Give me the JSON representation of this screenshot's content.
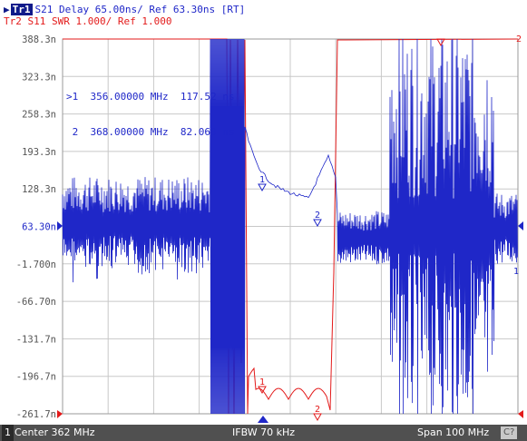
{
  "trace1": {
    "badge": "Tr1",
    "text": "S21 Delay 65.00ns/ Ref 63.30ns [RT]"
  },
  "trace2": {
    "badge": "Tr2",
    "text": "S11 SWR 1.000/ Ref 1.000"
  },
  "y_axis_labels": [
    "388.3n",
    "323.3n",
    "258.3n",
    "193.3n",
    "128.3n",
    "63.30n",
    "-1.700n",
    "-66.70n",
    "-131.7n",
    "-196.7n",
    "-261.7n"
  ],
  "ref_label_index": 5,
  "marker_table": [
    {
      "prefix": ">1",
      "freq": "356.00000 MHz",
      "value": "117.52 ns"
    },
    {
      "prefix": " 2",
      "freq": "368.00000 MHz",
      "value": "82.060 ns"
    }
  ],
  "status": {
    "channel": "1",
    "center": "Center 362 MHz",
    "ifbw": "IFBW 70 kHz",
    "span": "Span 100 MHz",
    "cal": "C?"
  },
  "right_markers": {
    "tr2": "2",
    "tr1": "1"
  },
  "colors": {
    "trace1": "#1f27c8",
    "trace2": "#e31a1a",
    "grid": "#c8c8c8",
    "plot_bg": "#ffffff"
  }
}
